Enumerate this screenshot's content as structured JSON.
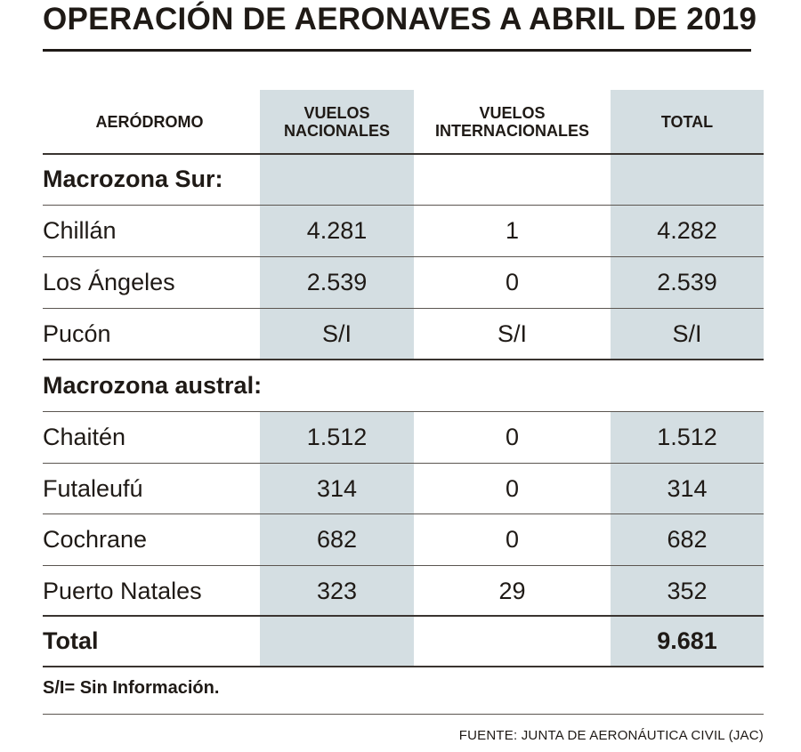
{
  "title": "OPERACIÓN DE AERONAVES A ABRIL DE 2019",
  "headers": {
    "aerodromo": "AERÓDROMO",
    "nacionales_1": "VUELOS",
    "nacionales_2": "NACIONALES",
    "internacionales_1": "VUELOS",
    "internacionales_2": "INTERNACIONALES",
    "total": "TOTAL"
  },
  "sections": [
    {
      "name": "Macrozona Sur:",
      "rows": [
        {
          "aerodromo": "Chillán",
          "nacionales": "4.281",
          "internacionales": "1",
          "total": "4.282"
        },
        {
          "aerodromo": "Los Ángeles",
          "nacionales": "2.539",
          "internacionales": "0",
          "total": "2.539"
        },
        {
          "aerodromo": "Pucón",
          "nacionales": "S/I",
          "internacionales": "S/I",
          "total": "S/I"
        }
      ]
    },
    {
      "name": "Macrozona austral:",
      "rows": [
        {
          "aerodromo": "Chaitén",
          "nacionales": "1.512",
          "internacionales": "0",
          "total": "1.512"
        },
        {
          "aerodromo": "Futaleufú",
          "nacionales": "314",
          "internacionales": "0",
          "total": "314"
        },
        {
          "aerodromo": "Cochrane",
          "nacionales": "682",
          "internacionales": "0",
          "total": "682"
        },
        {
          "aerodromo": "Puerto Natales",
          "nacionales": "323",
          "internacionales": "29",
          "total": "352"
        }
      ]
    }
  ],
  "total_row": {
    "label": "Total",
    "nacionales": "",
    "internacionales": "",
    "total": "9.681"
  },
  "footnote": "S/I= Sin Información.",
  "source": "FUENTE: JUNTA DE AERONÁUTICA CIVIL (JAC)",
  "colors": {
    "shade": "#d4dee2",
    "text": "#1f1a16"
  }
}
